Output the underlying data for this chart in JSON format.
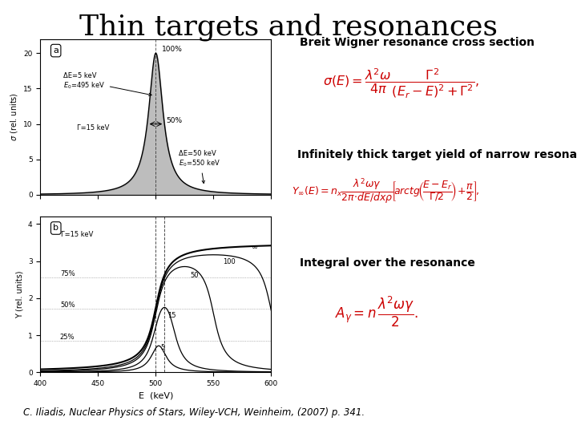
{
  "title": "Thin targets and resonances",
  "title_fontsize": 26,
  "title_color": "#000000",
  "background_color": "#ffffff",
  "eq_color": "#cc0000",
  "text_color": "#000000",
  "citation": "C. Iliadis, Nuclear Physics of Stars, Wiley-VCH, Weinheim, (2007) p. 341.",
  "citation_fontsize": 8.5,
  "label1": "Breit Wigner resonance cross section",
  "label1_fontsize": 10,
  "label2": "Infinitely thick target yield of narrow resonance",
  "label2_fontsize": 10,
  "label3": "Integral over the resonance",
  "label3_fontsize": 10
}
